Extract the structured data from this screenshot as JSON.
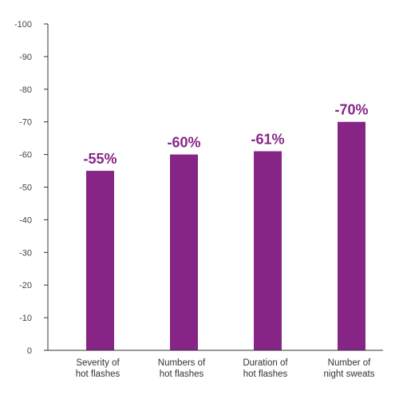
{
  "chart_data": {
    "type": "bar",
    "title": "",
    "xlabel": "",
    "ylabel": "",
    "categories": [
      [
        "Severity of",
        "hot flashes"
      ],
      [
        "Numbers of",
        "hot flashes"
      ],
      [
        "Duration of",
        "hot flashes"
      ],
      [
        "Number of",
        "night sweats"
      ]
    ],
    "values": [
      -55,
      -60,
      -61,
      -70
    ],
    "value_labels": [
      "-55%",
      "-60%",
      "-61%",
      "-70%"
    ],
    "y_ticks": [
      0,
      -10,
      -20,
      -30,
      -40,
      -50,
      -60,
      -70,
      -80,
      -90,
      -100
    ],
    "ylim": [
      0,
      -100
    ],
    "y_axis_inverted": true,
    "grid": false,
    "legend": "none",
    "colors": {
      "bar": "#862586",
      "value_label": "#862586",
      "axis": "#333333"
    }
  }
}
